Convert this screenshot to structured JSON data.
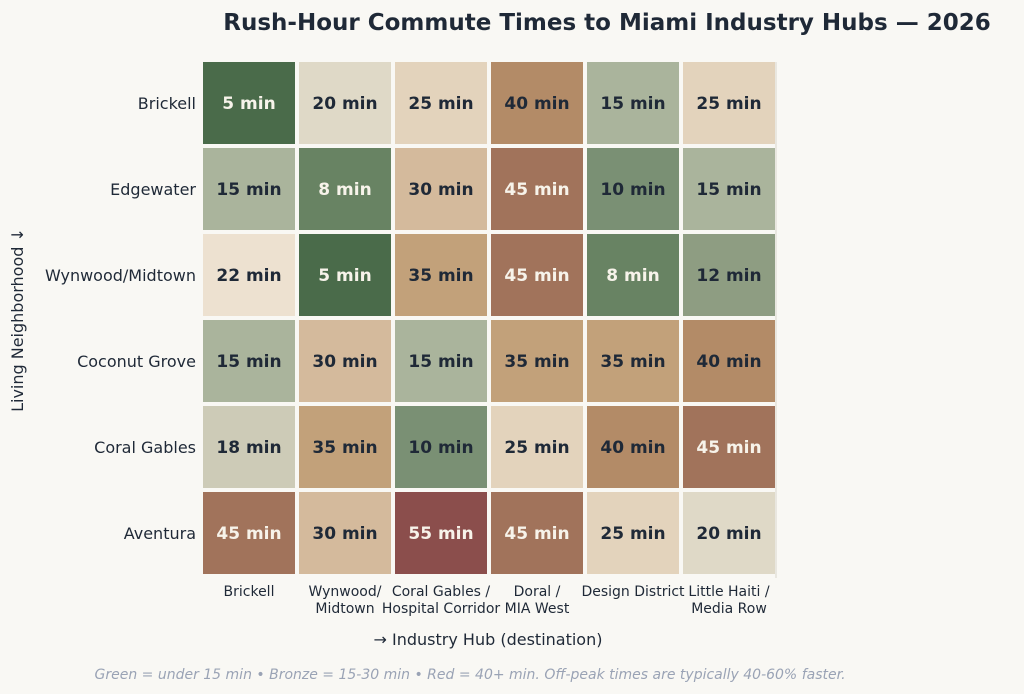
{
  "chart_data": {
    "type": "heatmap",
    "title": "Rush-Hour Commute Times to Miami Industry Hubs — 2026",
    "xlabel": "→ Industry Hub (destination)",
    "ylabel": "Living Neighborhood ↓",
    "rows": [
      "Brickell",
      "Edgewater",
      "Wynwood/Midtown",
      "Coconut Grove",
      "Coral Gables",
      "Aventura"
    ],
    "columns": [
      [
        "Brickell"
      ],
      [
        "Wynwood/",
        "Midtown"
      ],
      [
        "Coral Gables /",
        "Hospital Corridor"
      ],
      [
        "Doral /",
        "MIA West"
      ],
      [
        "Design District"
      ],
      [
        "Little Haiti /",
        "Media Row"
      ]
    ],
    "values": [
      [
        5,
        20,
        25,
        40,
        15,
        25
      ],
      [
        15,
        8,
        30,
        45,
        10,
        15
      ],
      [
        22,
        5,
        35,
        45,
        8,
        12
      ],
      [
        15,
        30,
        15,
        35,
        35,
        40
      ],
      [
        18,
        35,
        10,
        25,
        40,
        45
      ],
      [
        45,
        30,
        55,
        45,
        25,
        20
      ]
    ],
    "unit": "min",
    "colors": {
      "5": "#4a6b4a",
      "8": "#688363",
      "10": "#7a9074",
      "12": "#8e9d82",
      "15": "#aab49c",
      "18": "#cdcbb7",
      "20": "#dfd9c7",
      "22": "#ede1d0",
      "25": "#e3d3bc",
      "30": "#d4ba9c",
      "35": "#c2a17a",
      "40": "#b38b67",
      "45": "#a1735b",
      "55": "#8b4e4c"
    },
    "light_text_threshold_low": 8,
    "light_text_threshold_high": 45,
    "footnote": "Green = under 15 min • Bronze = 15-30 min • Red = 40+ min. Off-peak times are typically 40-60% faster."
  }
}
